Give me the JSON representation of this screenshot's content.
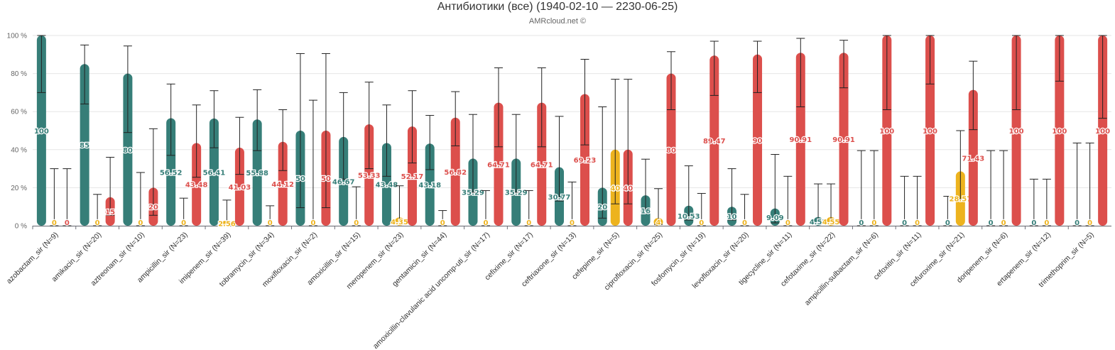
{
  "chart_data": {
    "type": "bar",
    "title": "Антибиотики (все) (1940-02-10 — 2230-06-25)",
    "subtitle": "AMRcloud.net ©",
    "xlabel": "",
    "ylabel": "",
    "ylim": [
      0,
      100
    ],
    "y_ticks": [
      "0 %",
      "20 %",
      "40 %",
      "60 %",
      "80 %",
      "100 %"
    ],
    "y_tick_values": [
      0,
      20,
      40,
      60,
      80,
      100
    ],
    "grid": true,
    "colors": {
      "S": "#367E78",
      "I": "#EDB31E",
      "R": "#DC4F4C"
    },
    "series_order": [
      "S",
      "I",
      "R"
    ],
    "categories": [
      "azobactam_sir (N=9)",
      "amikacin_sir (N=20)",
      "aztreonam_sir (N=10)",
      "ampicillin_sir (N=23)",
      "imipenem_sir (N=39)",
      "tobramycin_sir (N=34)",
      "moxifloxacin_sir (N=2)",
      "amoxicillin_sir (N=15)",
      "meropenem_sir (N=23)",
      "gentamicin_sir (N=44)",
      "amoxicillin-clavulanic acid uncomp-uti_sir (N=17)",
      "cefixime_sir (N=17)",
      "ceftriaxone_sir (N=13)",
      "cefepime_sir (N=5)",
      "ciprofloxacin_sir (N=25)",
      "fosfomycin_sir (N=19)",
      "levofloxacin_sir (N=20)",
      "tigecycline_sir (N=11)",
      "cefotaxime_sir (N=22)",
      "ampicillin-sulbactam_sir (N=6)",
      "cefoxitin_sir (N=11)",
      "cefuroxime_sir (N=21)",
      "doripenem_sir (N=6)",
      "ertapenem_sir (N=12)",
      "trimethoprim_sir (N=5)"
    ],
    "series": [
      {
        "values": [
          100,
          85,
          80,
          56.52,
          56.41,
          55.88,
          50,
          46.67,
          43.48,
          43.18,
          35.29,
          35.29,
          30.77,
          20,
          16,
          10.53,
          10,
          9.09,
          4.55,
          0,
          0,
          0,
          0,
          0,
          0
        ],
        "labels": [
          "100",
          "85",
          "80",
          "56.52",
          "56.41",
          "55.88",
          "50",
          "46.67",
          "43.48",
          "43.18",
          "35.29",
          "35.29",
          "30.77",
          "20",
          "16",
          "10.53",
          "10",
          "9.09",
          "4.55",
          "0",
          "0",
          "0",
          "0",
          "0",
          "0"
        ],
        "ci_low": [
          70,
          64,
          49,
          37,
          41,
          39.5,
          9.5,
          24.5,
          26,
          29.5,
          17.5,
          17.5,
          13,
          4,
          6.5,
          3,
          3,
          1.5,
          1,
          0,
          0,
          0,
          0,
          0,
          0
        ],
        "ci_high": [
          100,
          95,
          94.5,
          74.5,
          71,
          71.5,
          90.5,
          70,
          63.5,
          58,
          58.5,
          58.5,
          57.5,
          62.5,
          35,
          31.5,
          30,
          37.5,
          22,
          39.5,
          26,
          15.5,
          39.5,
          24.5,
          43.5
        ]
      },
      {
        "values": [
          0,
          0,
          0,
          0,
          2.56,
          0,
          0,
          0,
          4.35,
          0,
          0,
          0,
          0,
          40,
          4,
          0,
          0,
          0,
          4.55,
          0,
          0,
          28.57,
          0,
          0,
          0
        ],
        "labels": [
          "0",
          "0",
          "0",
          "0",
          "2.56",
          "0",
          "0",
          "0",
          "4.35",
          "0",
          "0",
          "0",
          "0",
          "40",
          "4",
          "0",
          "0",
          "0",
          "4.55",
          "0",
          "0",
          "28.57",
          "0",
          "0",
          "0"
        ],
        "ci_low": [
          0,
          0,
          0,
          0,
          0.5,
          0,
          0,
          0,
          0.8,
          0,
          0,
          0,
          0,
          11.5,
          0.7,
          0,
          0,
          0,
          0.8,
          0,
          0,
          14,
          0,
          0,
          0
        ],
        "ci_high": [
          30,
          16.5,
          28,
          14.5,
          13.5,
          10.5,
          66,
          20.5,
          21,
          8,
          18.5,
          18.5,
          23,
          77,
          19.5,
          17,
          16.5,
          26,
          22,
          39.5,
          26,
          50,
          39.5,
          24.5,
          43.5
        ]
      },
      {
        "values": [
          0,
          15,
          20,
          43.48,
          41.03,
          44.12,
          50,
          53.33,
          52.17,
          56.82,
          64.71,
          64.71,
          69.23,
          40,
          80,
          89.47,
          90,
          90.91,
          90.91,
          100,
          100,
          71.43,
          100,
          100,
          100
        ],
        "labels": [
          "0",
          "15",
          "20",
          "43.48",
          "41.03",
          "44.12",
          "50",
          "53.33",
          "52.17",
          "56.82",
          "64.71",
          "64.71",
          "69.23",
          "40",
          "80",
          "89.47",
          "90",
          "90.91",
          "90.91",
          "100",
          "100",
          "71.43",
          "100",
          "100",
          "100"
        ],
        "ci_low": [
          0,
          5.5,
          5.5,
          25.5,
          27,
          29,
          9.5,
          30,
          33,
          42,
          41.5,
          41.5,
          42.5,
          11.5,
          61,
          68.5,
          70,
          62.5,
          72.5,
          61,
          74.5,
          50.5,
          61,
          76,
          56.5
        ],
        "ci_high": [
          30,
          36,
          51,
          63.5,
          57,
          61,
          90.5,
          75.5,
          71,
          70.5,
          83,
          83,
          87.5,
          77,
          91.5,
          97,
          97,
          98.5,
          97.5,
          100,
          100,
          86.5,
          100,
          100,
          100
        ]
      }
    ]
  }
}
